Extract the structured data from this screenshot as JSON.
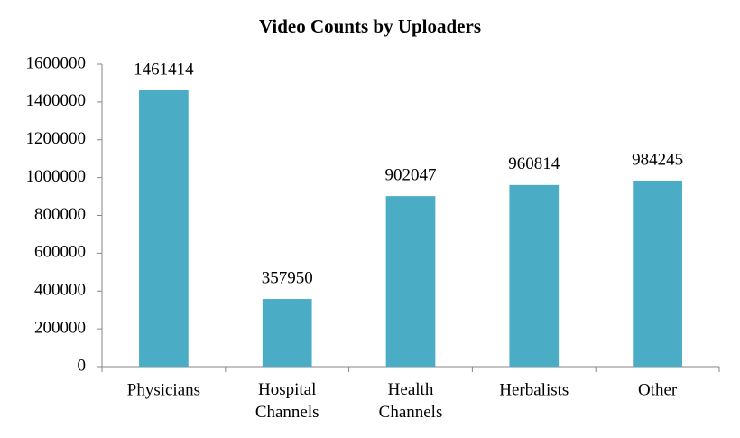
{
  "chart_data": {
    "type": "bar",
    "title": "Video Counts by Uploaders",
    "categories": [
      "Physicians",
      "Hospital Channels",
      "Health Channels",
      "Herbalists",
      "Other"
    ],
    "values": [
      1461414,
      357950,
      902047,
      960814,
      984245
    ],
    "color": "#4bacc6",
    "ylim": [
      0,
      1600000
    ],
    "yticks": [
      0,
      200000,
      400000,
      600000,
      800000,
      1000000,
      1200000,
      1400000,
      1600000
    ],
    "grid": false
  }
}
